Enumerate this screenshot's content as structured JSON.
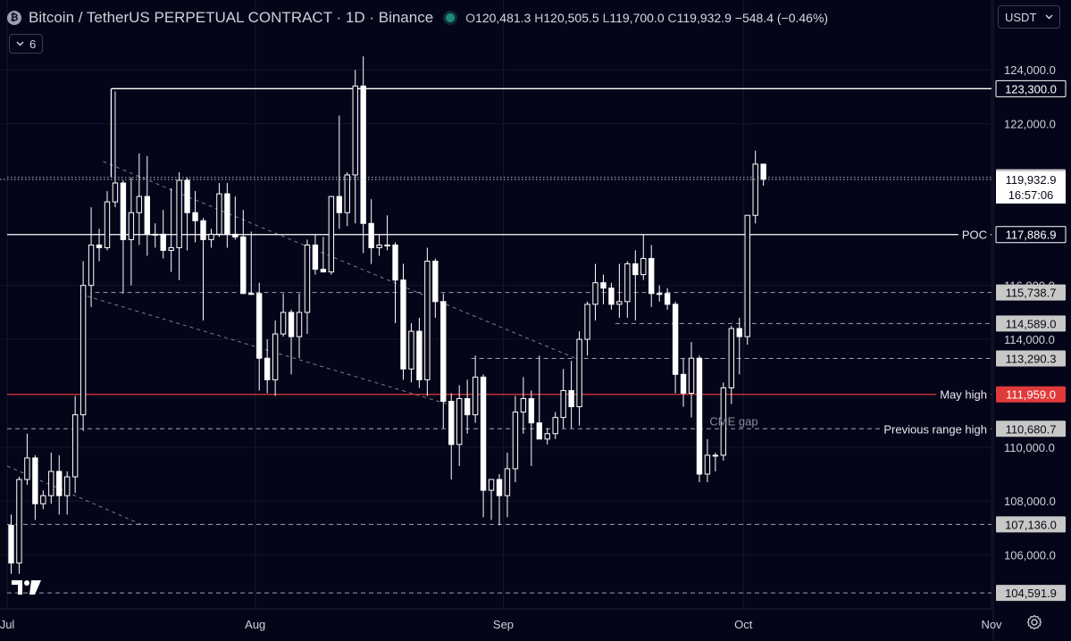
{
  "header": {
    "title": "Bitcoin / TetherUS PERPETUAL CONTRACT · 1D · Binance",
    "o_label": "O",
    "o_value": "120,481.3",
    "h_label": "H",
    "h_value": "120,505.5",
    "l_label": "L",
    "l_value": "119,700.0",
    "c_label": "C",
    "c_value": "119,932.9",
    "change": "−548.4 (−0.46%)"
  },
  "indicator_count": "6",
  "currency": "USDT",
  "icons": {
    "coin": "bitcoin-icon",
    "status": "market-status-dot",
    "collapse": "chevron-down-icon",
    "currency_dropdown": "chevron-down-icon",
    "logo": "tradingview-logo",
    "settings": "gear-icon"
  },
  "colors": {
    "background": "#05051a",
    "candle": "#ffffff",
    "may_high_line": "#e03a3a",
    "grid": "#14162a",
    "label_gray": "#c8c8c8"
  },
  "chart_data": {
    "type": "candlestick",
    "symbol": "Bitcoin / TetherUS PERPETUAL CONTRACT",
    "interval": "1D",
    "exchange": "Binance",
    "x_tick_labels": [
      "Jul",
      "Aug",
      "Sep",
      "Oct",
      "Nov"
    ],
    "x_ticks": [
      "2025-07-01",
      "2025-08-01",
      "2025-09-01",
      "2025-10-01",
      "2025-11-01"
    ],
    "x_range": [
      "2025-07-01",
      "2025-11-01"
    ],
    "y_tick_labels": [
      "124,000.0",
      "122,000.0",
      "116,000.0",
      "114,000.0",
      "110,000.0",
      "108,000.0",
      "106,000.0"
    ],
    "y_ticks": [
      124000,
      122000,
      116000,
      114000,
      110000,
      108000,
      106000
    ],
    "y_range": [
      104000,
      125000
    ],
    "grid": true,
    "candles": [
      {
        "date": "2025-07-01",
        "o": 107100,
        "h": 107500,
        "l": 105300,
        "c": 105700
      },
      {
        "date": "2025-07-02",
        "o": 105700,
        "h": 108900,
        "l": 105300,
        "c": 108800
      },
      {
        "date": "2025-07-03",
        "o": 108800,
        "h": 110500,
        "l": 108600,
        "c": 109600
      },
      {
        "date": "2025-07-04",
        "o": 109600,
        "h": 109700,
        "l": 107300,
        "c": 107900
      },
      {
        "date": "2025-07-05",
        "o": 107900,
        "h": 108400,
        "l": 107700,
        "c": 108200
      },
      {
        "date": "2025-07-06",
        "o": 108200,
        "h": 109800,
        "l": 107900,
        "c": 109100
      },
      {
        "date": "2025-07-07",
        "o": 109100,
        "h": 109700,
        "l": 107500,
        "c": 108200
      },
      {
        "date": "2025-07-08",
        "o": 108200,
        "h": 109100,
        "l": 107500,
        "c": 108900
      },
      {
        "date": "2025-07-09",
        "o": 108900,
        "h": 111900,
        "l": 108300,
        "c": 111200
      },
      {
        "date": "2025-07-10",
        "o": 111200,
        "h": 116900,
        "l": 110600,
        "c": 116000
      },
      {
        "date": "2025-07-11",
        "o": 116000,
        "h": 118900,
        "l": 115200,
        "c": 117500
      },
      {
        "date": "2025-07-12",
        "o": 117500,
        "h": 118100,
        "l": 116900,
        "c": 117400
      },
      {
        "date": "2025-07-13",
        "o": 117400,
        "h": 119500,
        "l": 117300,
        "c": 119100
      },
      {
        "date": "2025-07-14",
        "o": 119100,
        "h": 123200,
        "l": 118900,
        "c": 119800
      },
      {
        "date": "2025-07-15",
        "o": 119800,
        "h": 119900,
        "l": 115700,
        "c": 117700
      },
      {
        "date": "2025-07-16",
        "o": 117700,
        "h": 120000,
        "l": 116000,
        "c": 118700
      },
      {
        "date": "2025-07-17",
        "o": 118700,
        "h": 120900,
        "l": 117500,
        "c": 119300
      },
      {
        "date": "2025-07-18",
        "o": 119300,
        "h": 120800,
        "l": 117100,
        "c": 117900
      },
      {
        "date": "2025-07-19",
        "o": 117900,
        "h": 118300,
        "l": 117400,
        "c": 117900
      },
      {
        "date": "2025-07-20",
        "o": 117900,
        "h": 118800,
        "l": 117000,
        "c": 117300
      },
      {
        "date": "2025-07-21",
        "o": 117300,
        "h": 119600,
        "l": 116500,
        "c": 117400
      },
      {
        "date": "2025-07-22",
        "o": 117400,
        "h": 120200,
        "l": 116200,
        "c": 119900
      },
      {
        "date": "2025-07-23",
        "o": 119900,
        "h": 120000,
        "l": 117300,
        "c": 118700
      },
      {
        "date": "2025-07-24",
        "o": 118700,
        "h": 119500,
        "l": 117600,
        "c": 118400
      },
      {
        "date": "2025-07-25",
        "o": 118400,
        "h": 118500,
        "l": 114700,
        "c": 117700
      },
      {
        "date": "2025-07-26",
        "o": 117700,
        "h": 118100,
        "l": 117400,
        "c": 117900
      },
      {
        "date": "2025-07-27",
        "o": 117900,
        "h": 119800,
        "l": 117800,
        "c": 119400
      },
      {
        "date": "2025-07-28",
        "o": 119400,
        "h": 119800,
        "l": 117400,
        "c": 117900
      },
      {
        "date": "2025-07-29",
        "o": 117900,
        "h": 119300,
        "l": 117700,
        "c": 117800
      },
      {
        "date": "2025-07-30",
        "o": 117800,
        "h": 118800,
        "l": 115800,
        "c": 115700
      },
      {
        "date": "2025-07-31",
        "o": 115700,
        "h": 118000,
        "l": 115700,
        "c": 115700
      },
      {
        "date": "2025-08-01",
        "o": 115700,
        "h": 116100,
        "l": 112100,
        "c": 113300
      },
      {
        "date": "2025-08-02",
        "o": 113300,
        "h": 114000,
        "l": 112000,
        "c": 112500
      },
      {
        "date": "2025-08-03",
        "o": 112500,
        "h": 114700,
        "l": 111900,
        "c": 114200
      },
      {
        "date": "2025-08-04",
        "o": 114200,
        "h": 115700,
        "l": 114100,
        "c": 115000
      },
      {
        "date": "2025-08-05",
        "o": 115000,
        "h": 115100,
        "l": 112700,
        "c": 114100
      },
      {
        "date": "2025-08-06",
        "o": 114100,
        "h": 115700,
        "l": 113300,
        "c": 115000
      },
      {
        "date": "2025-08-07",
        "o": 115000,
        "h": 117700,
        "l": 114200,
        "c": 117500
      },
      {
        "date": "2025-08-08",
        "o": 117500,
        "h": 117900,
        "l": 116400,
        "c": 116600
      },
      {
        "date": "2025-08-09",
        "o": 116600,
        "h": 117800,
        "l": 116500,
        "c": 116500
      },
      {
        "date": "2025-08-10",
        "o": 116500,
        "h": 119300,
        "l": 116400,
        "c": 119300
      },
      {
        "date": "2025-08-11",
        "o": 119300,
        "h": 122300,
        "l": 118100,
        "c": 118700
      },
      {
        "date": "2025-08-12",
        "o": 118700,
        "h": 120200,
        "l": 118200,
        "c": 120100
      },
      {
        "date": "2025-08-13",
        "o": 120100,
        "h": 124000,
        "l": 118300,
        "c": 123400
      },
      {
        "date": "2025-08-14",
        "o": 123400,
        "h": 124500,
        "l": 117200,
        "c": 118300
      },
      {
        "date": "2025-08-15",
        "o": 118300,
        "h": 119200,
        "l": 116800,
        "c": 117400
      },
      {
        "date": "2025-08-16",
        "o": 117400,
        "h": 117900,
        "l": 117100,
        "c": 117500
      },
      {
        "date": "2025-08-17",
        "o": 117500,
        "h": 118600,
        "l": 117300,
        "c": 117500
      },
      {
        "date": "2025-08-18",
        "o": 117500,
        "h": 117600,
        "l": 114600,
        "c": 116200
      },
      {
        "date": "2025-08-19",
        "o": 116200,
        "h": 116800,
        "l": 112500,
        "c": 112900
      },
      {
        "date": "2025-08-20",
        "o": 112900,
        "h": 114600,
        "l": 112400,
        "c": 114300
      },
      {
        "date": "2025-08-21",
        "o": 114300,
        "h": 114800,
        "l": 112200,
        "c": 112500
      },
      {
        "date": "2025-08-22",
        "o": 112500,
        "h": 117400,
        "l": 111900,
        "c": 116900
      },
      {
        "date": "2025-08-23",
        "o": 116900,
        "h": 117000,
        "l": 114800,
        "c": 115400
      },
      {
        "date": "2025-08-24",
        "o": 115400,
        "h": 115700,
        "l": 110700,
        "c": 111700
      },
      {
        "date": "2025-08-25",
        "o": 111700,
        "h": 112000,
        "l": 108800,
        "c": 110100
      },
      {
        "date": "2025-08-26",
        "o": 110100,
        "h": 112300,
        "l": 109300,
        "c": 111800
      },
      {
        "date": "2025-08-27",
        "o": 111800,
        "h": 112500,
        "l": 110500,
        "c": 111200
      },
      {
        "date": "2025-08-28",
        "o": 111200,
        "h": 113400,
        "l": 110900,
        "c": 112600
      },
      {
        "date": "2025-08-29",
        "o": 112600,
        "h": 112700,
        "l": 107400,
        "c": 108400
      },
      {
        "date": "2025-08-30",
        "o": 108400,
        "h": 108800,
        "l": 107300,
        "c": 108800
      },
      {
        "date": "2025-08-31",
        "o": 108800,
        "h": 109000,
        "l": 107100,
        "c": 108200
      },
      {
        "date": "2025-09-01",
        "o": 108200,
        "h": 109800,
        "l": 107400,
        "c": 109200
      },
      {
        "date": "2025-09-02",
        "o": 109200,
        "h": 111900,
        "l": 108700,
        "c": 111300
      },
      {
        "date": "2025-09-03",
        "o": 111300,
        "h": 112600,
        "l": 110500,
        "c": 111800
      },
      {
        "date": "2025-09-04",
        "o": 111800,
        "h": 112100,
        "l": 109300,
        "c": 110900
      },
      {
        "date": "2025-09-05",
        "o": 110900,
        "h": 113400,
        "l": 110300,
        "c": 110300
      },
      {
        "date": "2025-09-06",
        "o": 110300,
        "h": 110700,
        "l": 110100,
        "c": 110500
      },
      {
        "date": "2025-09-07",
        "o": 110500,
        "h": 111300,
        "l": 110300,
        "c": 111100
      },
      {
        "date": "2025-09-08",
        "o": 111100,
        "h": 112900,
        "l": 110700,
        "c": 112100
      },
      {
        "date": "2025-09-09",
        "o": 112100,
        "h": 113200,
        "l": 110700,
        "c": 111500
      },
      {
        "date": "2025-09-10",
        "o": 111500,
        "h": 114300,
        "l": 110800,
        "c": 114000
      },
      {
        "date": "2025-09-11",
        "o": 114000,
        "h": 115400,
        "l": 113400,
        "c": 115300
      },
      {
        "date": "2025-09-12",
        "o": 115300,
        "h": 116800,
        "l": 114700,
        "c": 116100
      },
      {
        "date": "2025-09-13",
        "o": 116100,
        "h": 116400,
        "l": 115300,
        "c": 115900
      },
      {
        "date": "2025-09-14",
        "o": 115900,
        "h": 116100,
        "l": 115100,
        "c": 115300
      },
      {
        "date": "2025-09-15",
        "o": 115300,
        "h": 116800,
        "l": 114800,
        "c": 115400
      },
      {
        "date": "2025-09-16",
        "o": 115400,
        "h": 116900,
        "l": 114800,
        "c": 116800
      },
      {
        "date": "2025-09-17",
        "o": 116800,
        "h": 117300,
        "l": 114700,
        "c": 116400
      },
      {
        "date": "2025-09-18",
        "o": 116400,
        "h": 117900,
        "l": 116200,
        "c": 117000
      },
      {
        "date": "2025-09-19",
        "o": 117000,
        "h": 117500,
        "l": 115200,
        "c": 115700
      },
      {
        "date": "2025-09-20",
        "o": 115700,
        "h": 116000,
        "l": 115400,
        "c": 115700
      },
      {
        "date": "2025-09-21",
        "o": 115700,
        "h": 115900,
        "l": 115100,
        "c": 115300
      },
      {
        "date": "2025-09-22",
        "o": 115300,
        "h": 115400,
        "l": 112000,
        "c": 112700
      },
      {
        "date": "2025-09-23",
        "o": 112700,
        "h": 113300,
        "l": 111500,
        "c": 112000
      },
      {
        "date": "2025-09-24",
        "o": 112000,
        "h": 113900,
        "l": 111100,
        "c": 113300
      },
      {
        "date": "2025-09-25",
        "o": 113300,
        "h": 113400,
        "l": 108700,
        "c": 109000
      },
      {
        "date": "2025-09-26",
        "o": 109000,
        "h": 110300,
        "l": 108700,
        "c": 109700
      },
      {
        "date": "2025-09-27",
        "o": 109700,
        "h": 109800,
        "l": 109100,
        "c": 109700
      },
      {
        "date": "2025-09-28",
        "o": 109700,
        "h": 112400,
        "l": 109500,
        "c": 112200
      },
      {
        "date": "2025-09-29",
        "o": 112200,
        "h": 114500,
        "l": 111600,
        "c": 114400
      },
      {
        "date": "2025-09-30",
        "o": 114400,
        "h": 114800,
        "l": 112700,
        "c": 114100
      },
      {
        "date": "2025-10-01",
        "o": 114100,
        "h": 118600,
        "l": 113800,
        "c": 118600
      },
      {
        "date": "2025-10-02",
        "o": 118600,
        "h": 121000,
        "l": 118300,
        "c": 120500
      },
      {
        "date": "2025-10-03",
        "o": 120500,
        "h": 120500,
        "l": 119700,
        "c": 119932.9
      }
    ],
    "levels": [
      {
        "price": 123300.0,
        "label": "123,300.0",
        "style": "solid",
        "color": "#ffffff",
        "from": "2025-07-14",
        "tag": "boxed"
      },
      {
        "price": 120015.4,
        "label": "120,015.4",
        "style": "dotted",
        "color": "#9aa0b0",
        "from": "2025-07-01",
        "tag": "gray"
      },
      {
        "price": 117886.9,
        "label": "117,886.9",
        "style": "solid",
        "color": "#ffffff",
        "from": "2025-07-01",
        "tag": "boxed",
        "name": "POC"
      },
      {
        "price": 115738.7,
        "label": "115,738.7",
        "style": "dashed",
        "color": "#9aa0b0",
        "from": "2025-07-12",
        "tag": "gray"
      },
      {
        "price": 114589.0,
        "label": "114,589.0",
        "style": "dashed",
        "color": "#9aa0b0",
        "from": "2025-09-15",
        "tag": "gray"
      },
      {
        "price": 113290.3,
        "label": "113,290.3",
        "style": "dashed",
        "color": "#9aa0b0",
        "from": "2025-08-28",
        "tag": "gray"
      },
      {
        "price": 111959.0,
        "label": "111,959.0",
        "style": "solid",
        "color": "#e03a3a",
        "from": "2025-07-01",
        "tag": "red",
        "name": "May high"
      },
      {
        "price": 110680.7,
        "label": "110,680.7",
        "style": "dashed",
        "color": "#9aa0b0",
        "from": "2025-07-01",
        "tag": "gray",
        "name": "Previous range high"
      },
      {
        "price": 107136.0,
        "label": "107,136.0",
        "style": "dashed",
        "color": "#9aa0b0",
        "from": "2025-07-01",
        "tag": "gray"
      },
      {
        "price": 104591.9,
        "label": "104,591.9",
        "style": "dashed",
        "color": "#9aa0b0",
        "from": "2025-07-01",
        "tag": "gray"
      }
    ],
    "current_price": {
      "label": "119,932.9",
      "countdown": "16:57:06",
      "price": 119932.9
    },
    "trendlines": [
      {
        "from": {
          "date": "2025-07-11",
          "price": 115600
        },
        "to": {
          "date": "2025-08-25",
          "price": 111600
        }
      },
      {
        "from": {
          "date": "2025-07-13",
          "price": 120600
        },
        "to": {
          "date": "2025-09-10",
          "price": 113300
        }
      },
      {
        "from": {
          "date": "2025-07-01",
          "price": 109300
        },
        "to": {
          "date": "2025-07-18",
          "price": 107100
        }
      }
    ],
    "annotations": [
      {
        "text": "CME gap",
        "date": "2025-09-27",
        "price": 110680.7
      }
    ]
  }
}
